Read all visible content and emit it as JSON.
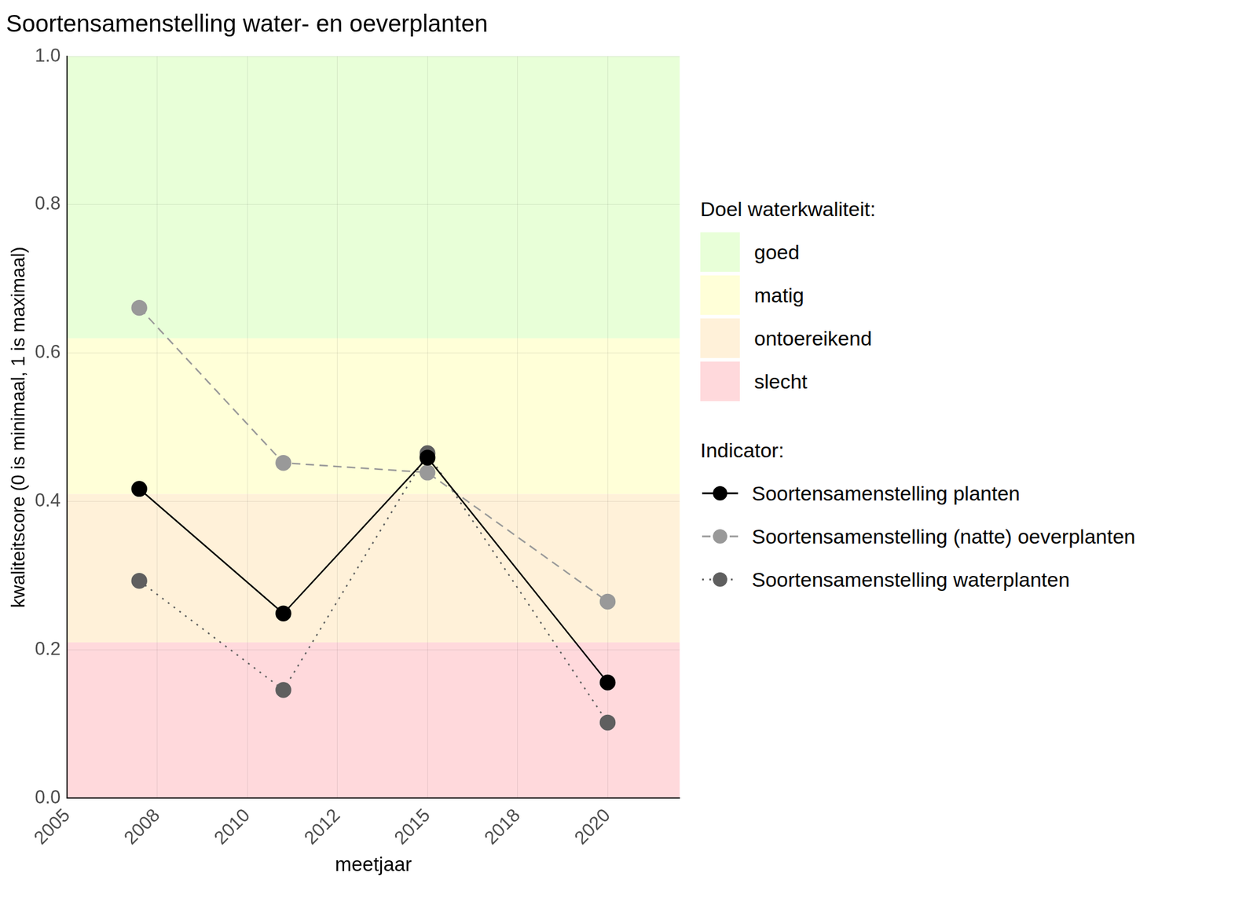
{
  "chart_data": {
    "type": "line",
    "title": "Soortensamenstelling water- en oeverplanten",
    "x_label": "meetjaar",
    "y_label": "kwaliteitscore (0 is minimaal, 1 is maximaal)",
    "x": [
      2007,
      2011,
      2015,
      2020
    ],
    "series": [
      {
        "name": "Soortensamenstelling planten",
        "color": "#000000",
        "line_style": "solid",
        "marker": "circle",
        "values": [
          0.417,
          0.249,
          0.459,
          0.156
        ]
      },
      {
        "name": "Soortensamenstelling (natte) oeverplanten",
        "color": "#999999",
        "line_style": "dashed",
        "marker": "circle",
        "values": [
          0.661,
          0.452,
          0.439,
          0.265
        ]
      },
      {
        "name": "Soortensamenstelling waterplanten",
        "color": "#5f5f5f",
        "line_style": "dotted",
        "marker": "circle",
        "values": [
          0.293,
          0.146,
          0.465,
          0.102
        ]
      }
    ],
    "xlim": [
      2005,
      2022
    ],
    "xticks": [
      2005,
      {
        "value": 2007.5,
        "label": "2008"
      },
      2010,
      {
        "value": 2012.5,
        "label": "2012"
      },
      2015,
      {
        "value": 2017.5,
        "label": "2018"
      },
      2020
    ],
    "ylim": [
      0,
      1
    ],
    "yticks": [
      {
        "value": 0,
        "label": "0.0"
      },
      0.2,
      0.4,
      0.6,
      0.8,
      {
        "value": 1,
        "label": "1.0"
      }
    ],
    "grid": true,
    "legend": "right",
    "bands_title": "Doel waterkwaliteit:",
    "bands": [
      {
        "name": "goed",
        "color": "#e8ffd8",
        "from": 0.62,
        "to": 1.0
      },
      {
        "name": "matig",
        "color": "#ffffd8",
        "from": 0.41,
        "to": 0.62
      },
      {
        "name": "ontoereikend",
        "color": "#fff1d9",
        "from": 0.21,
        "to": 0.41
      },
      {
        "name": "slecht",
        "color": "#ffd9dc",
        "from": 0.0,
        "to": 0.21
      }
    ],
    "legend_title": "Indicator:"
  }
}
